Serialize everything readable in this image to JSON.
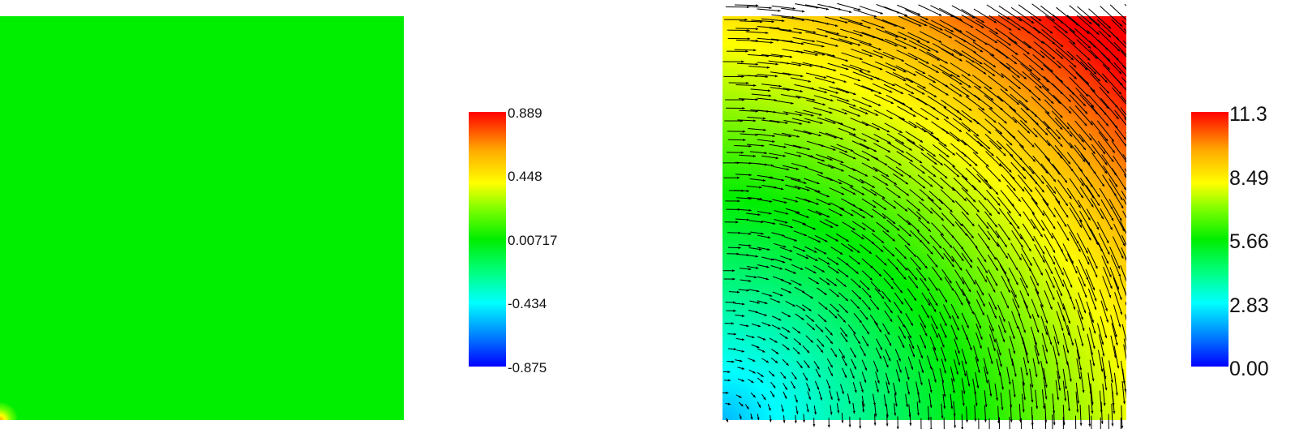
{
  "chart_data": [
    {
      "type": "heatmap",
      "colormap": [
        "#0000ff",
        "#00ffff",
        "#00ee00",
        "#ffff00",
        "#ff0000"
      ],
      "colorbar": {
        "range": [
          -0.875,
          0.889
        ],
        "ticks": [
          "0.889",
          "0.448",
          "0.00717",
          "-0.434",
          "-0.875"
        ]
      },
      "field_description_value": 0.0
    },
    {
      "type": "heatmap",
      "colormap": [
        "#0000ff",
        "#00ffff",
        "#00ee00",
        "#ffff00",
        "#ff0000"
      ],
      "colorbar": {
        "range": [
          0.0,
          11.3
        ],
        "ticks": [
          "11.3",
          "8.49",
          "5.66",
          "2.83",
          "0.00"
        ]
      },
      "vector_overlay": true,
      "vector_color": "#000000"
    }
  ]
}
